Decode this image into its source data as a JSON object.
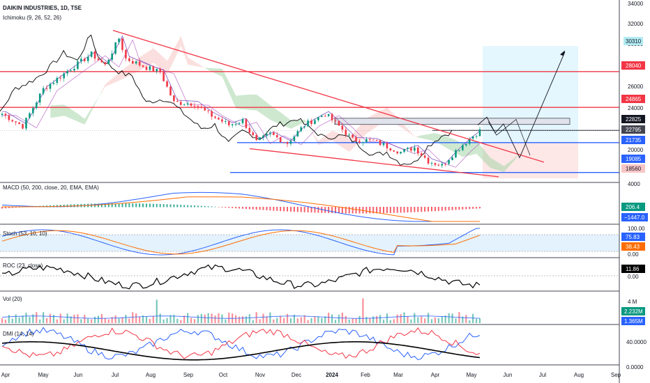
{
  "header": {
    "symbol": "DAIKIN INDUSTRIES, 1D, TSE",
    "indicator": "Ichimoku (9, 26, 52, 26)"
  },
  "colors": {
    "bull": "#089981",
    "bear": "#f23645",
    "trend": "#f23645",
    "support": "#2962ff",
    "cloud_up": "#a5d6a7",
    "cloud_down": "#f7c5c5",
    "macd": "#2962ff",
    "signal": "#ff6d00",
    "stoch_k": "#2962ff",
    "stoch_d": "#ff6d00",
    "dmi_plus": "#2962ff",
    "dmi_minus": "#f23645",
    "adx": "#000000"
  },
  "chart_data": {
    "type": "candlestick",
    "price_axis": {
      "ticks": [
        "34000",
        "32000",
        "30000",
        "28000",
        "26000",
        "24000",
        "22000",
        "20000"
      ],
      "ylim": [
        18200,
        34400
      ]
    },
    "time_axis": [
      "Apr",
      "May",
      "Jun",
      "Jul",
      "Aug",
      "Sep",
      "Oct",
      "Nov",
      "Dec",
      "2024",
      "Feb",
      "Mar",
      "Apr",
      "May",
      "Jun",
      "Jul",
      "Aug",
      "Sep"
    ],
    "price_labels": [
      "30310",
      "28040",
      "24865",
      "22825",
      "22795",
      "21735",
      "19085",
      "18560"
    ],
    "horizontal_levels": [
      28040,
      24865,
      21735,
      19085
    ],
    "trend_lines": [
      {
        "from": [
          "2023-07-01",
          31600
        ],
        "to": [
          "2024-05-28",
          20000
        ]
      },
      {
        "from": [
          "2023-11-01",
          21000
        ],
        "to": [
          "2024-05-28",
          19400
        ]
      }
    ],
    "panes": [
      {
        "name": "MACD (50, 200, close, 20, EMA, EMA)",
        "ticks": [
          "4000"
        ],
        "values": [
          "206.4",
          "−1447.0"
        ]
      },
      {
        "name": "Stoch (53, 10, 10)",
        "ticks": [
          "100.00",
          "0.00"
        ],
        "values": [
          "75.83",
          "38.43"
        ]
      },
      {
        "name": "ROC (23, close)",
        "ticks": [
          "0.00"
        ],
        "values": [
          "11.86"
        ]
      },
      {
        "name": "Vol (20)",
        "ticks": [
          "4 M"
        ],
        "values": [
          "2.232M",
          "1.365M"
        ]
      },
      {
        "name": "DMI (14, 14)",
        "ticks": [
          "40.0000",
          "0.0000"
        ],
        "values": []
      }
    ]
  }
}
